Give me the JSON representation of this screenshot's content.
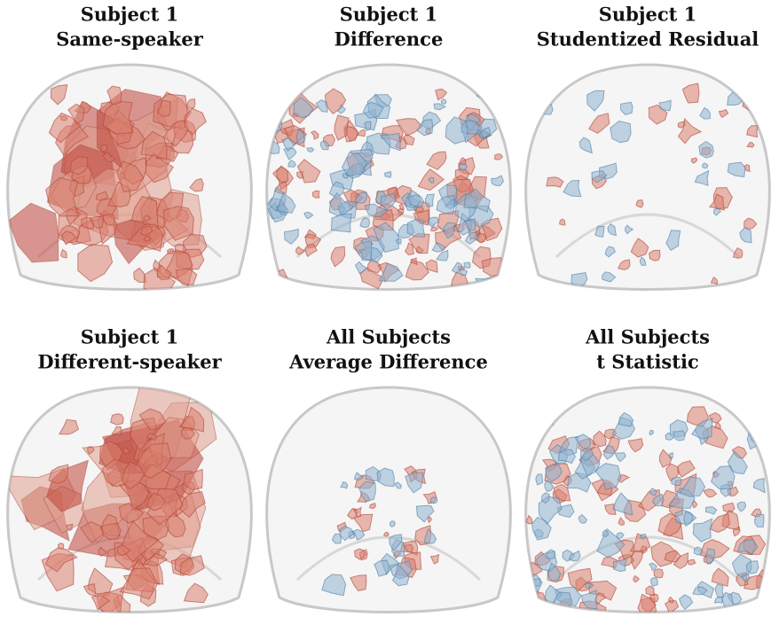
{
  "panels": [
    {
      "lines": [
        "Subject 1",
        "Same-speaker"
      ]
    },
    {
      "lines": [
        "Subject 1",
        "Difference"
      ]
    },
    {
      "lines": [
        "Subject 1",
        "Studentized Residual"
      ]
    },
    {
      "lines": [
        "Subject 1",
        "Different-speaker"
      ]
    },
    {
      "lines": [
        "All Subjects",
        "Average Difference"
      ]
    },
    {
      "lines": [
        "All Subjects",
        "t Statistic"
      ]
    }
  ]
}
